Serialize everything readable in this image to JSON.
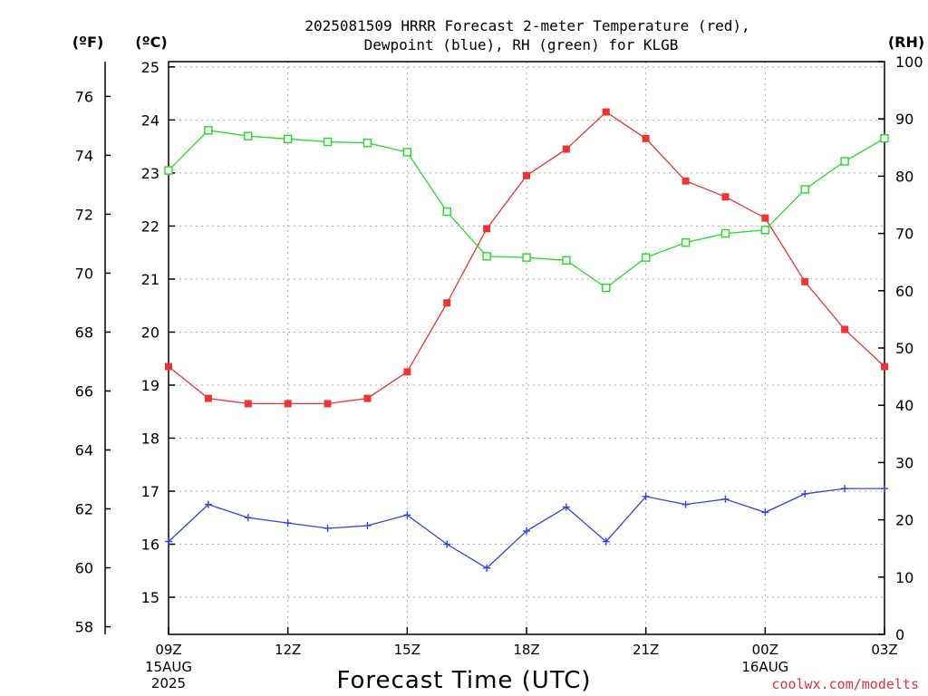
{
  "chart_data": {
    "type": "line",
    "title_lines": [
      "2025081509 HRRR Forecast 2-meter Temperature (red),",
      "Dewpoint (blue), RH (green) for KLGB"
    ],
    "xlabel": "Forecast Time (UTC)",
    "credit": "coolwx.com/modelts",
    "x_ticks": [
      {
        "label": "09Z",
        "sub": [
          "15AUG",
          "2025"
        ]
      },
      {
        "label": "12Z",
        "sub": []
      },
      {
        "label": "15Z",
        "sub": []
      },
      {
        "label": "18Z",
        "sub": []
      },
      {
        "label": "21Z",
        "sub": []
      },
      {
        "label": "00Z",
        "sub": [
          "16AUG"
        ]
      },
      {
        "label": "03Z",
        "sub": []
      }
    ],
    "x_hours": [
      9,
      10,
      11,
      12,
      13,
      14,
      15,
      16,
      17,
      18,
      19,
      20,
      21,
      22,
      23,
      24,
      25,
      26,
      27
    ],
    "axes": {
      "fahrenheit": {
        "unit": "(ºF)",
        "ticks": [
          "58",
          "60",
          "62",
          "64",
          "66",
          "68",
          "70",
          "72",
          "74",
          "76"
        ]
      },
      "celsius": {
        "unit": "(ºC)",
        "range": [
          14.3,
          25.1
        ],
        "ticks": [
          "15",
          "16",
          "17",
          "18",
          "19",
          "20",
          "21",
          "22",
          "23",
          "24",
          "25"
        ]
      },
      "rh": {
        "unit": "(RH)",
        "range": [
          0,
          100
        ],
        "ticks": [
          "0",
          "10",
          "20",
          "30",
          "40",
          "50",
          "60",
          "70",
          "80",
          "90",
          "100"
        ]
      }
    },
    "grid": true,
    "series": [
      {
        "name": "Temperature",
        "color": "#ee3333",
        "marker": "filled-square",
        "axis": "celsius",
        "values": [
          19.35,
          18.75,
          18.65,
          18.65,
          18.65,
          18.75,
          19.25,
          20.55,
          21.95,
          22.95,
          23.45,
          24.15,
          23.65,
          22.85,
          22.55,
          22.15,
          20.95,
          20.05,
          19.35
        ]
      },
      {
        "name": "Dewpoint",
        "color": "#3344dd",
        "marker": "plus",
        "axis": "celsius",
        "values": [
          16.05,
          16.75,
          16.5,
          16.4,
          16.3,
          16.35,
          16.55,
          16.0,
          15.55,
          16.25,
          16.7,
          16.05,
          16.9,
          16.75,
          16.85,
          16.6,
          16.95,
          17.05,
          17.05
        ]
      },
      {
        "name": "RH",
        "color": "#22dd22",
        "marker": "open-square",
        "axis": "rh",
        "values": [
          81,
          88,
          87,
          86.5,
          86,
          85.8,
          84.2,
          73.8,
          66,
          65.8,
          65.3,
          60.5,
          65.8,
          68.4,
          70,
          70.6,
          77.7,
          82.6,
          86.6
        ]
      }
    ]
  }
}
